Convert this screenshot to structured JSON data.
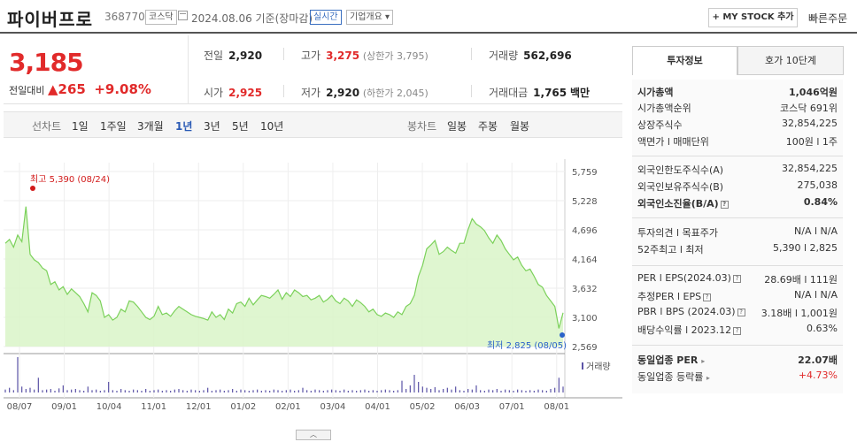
{
  "header": {
    "name": "파이버프로",
    "code": "368770",
    "market": "코스닥",
    "date": "2024.08.06 기준(장마감)",
    "realtime": "실시간",
    "company_overview": "기업개요",
    "mystock": "+ MY STOCK 추가",
    "quick_order": "빠른주문"
  },
  "price": {
    "current": "3,185",
    "change_label": "전일대비",
    "change_amount": "265",
    "change_rate": "+9.08%",
    "prev_label": "전일",
    "prev": "2,920",
    "high_label": "고가",
    "high": "3,275",
    "upper_limit": "(상한가 3,795)",
    "volume_label": "거래량",
    "volume": "562,696",
    "open_label": "시가",
    "open": "2,925",
    "low_label": "저가",
    "low": "2,920",
    "lower_limit": "(하한가 2,045)",
    "amount_label": "거래대금",
    "amount": "1,765",
    "amount_unit": "백만"
  },
  "period_bar": {
    "line_title": "선차트",
    "line_periods": [
      "1일",
      "1주일",
      "3개월",
      "1년",
      "3년",
      "5년",
      "10년"
    ],
    "active": "1년",
    "candle_title": "봉차트",
    "candle_periods": [
      "일봉",
      "주봉",
      "월봉"
    ]
  },
  "chart_data": {
    "type": "area",
    "y_ticks": [
      "5,759",
      "5,228",
      "4,696",
      "4,164",
      "3,632",
      "3,100",
      "2,569"
    ],
    "ylim": [
      2569,
      5759
    ],
    "x_ticks": [
      "08/07",
      "09/01",
      "10/04",
      "11/01",
      "12/01",
      "01/02",
      "02/01",
      "03/04",
      "04/01",
      "05/02",
      "06/03",
      "07/01",
      "08/01"
    ],
    "max_label": "최고 5,390 (08/24)",
    "min_label": "최저 2,825 (08/05)",
    "volume_label": "거래량",
    "color": "#7bd15a",
    "fill": "#d9f5c8",
    "values": [
      4450,
      4520,
      4380,
      4600,
      4480,
      5120,
      4250,
      4150,
      4100,
      4000,
      3950,
      3700,
      3750,
      3600,
      3660,
      3520,
      3620,
      3550,
      3480,
      3350,
      3200,
      3550,
      3500,
      3400,
      3100,
      3150,
      3050,
      3100,
      3250,
      3200,
      3400,
      3380,
      3300,
      3200,
      3100,
      3060,
      3120,
      3300,
      3150,
      3180,
      3120,
      3220,
      3300,
      3250,
      3200,
      3150,
      3120,
      3100,
      3080,
      3050,
      3200,
      3100,
      3150,
      3060,
      3250,
      3180,
      3350,
      3380,
      3300,
      3450,
      3330,
      3420,
      3500,
      3480,
      3450,
      3520,
      3600,
      3430,
      3550,
      3480,
      3600,
      3550,
      3480,
      3500,
      3420,
      3450,
      3500,
      3380,
      3430,
      3500,
      3400,
      3350,
      3450,
      3400,
      3300,
      3420,
      3370,
      3300,
      3200,
      3250,
      3150,
      3120,
      3180,
      3150,
      3100,
      3200,
      3150,
      3300,
      3350,
      3500,
      3850,
      4050,
      4350,
      4420,
      4500,
      4250,
      4300,
      4380,
      4320,
      4270,
      4450,
      4450,
      4700,
      4900,
      4800,
      4750,
      4680,
      4550,
      4450,
      4600,
      4500,
      4350,
      4250,
      4150,
      4200,
      4050,
      3950,
      3980,
      3850,
      3700,
      3650,
      3500,
      3400,
      3300,
      2900,
      3185
    ],
    "volumes": [
      5,
      8,
      4,
      60,
      10,
      6,
      8,
      5,
      25,
      4,
      5,
      6,
      3,
      7,
      12,
      4,
      5,
      6,
      4,
      3,
      10,
      4,
      5,
      3,
      4,
      18,
      4,
      3,
      6,
      4,
      3,
      5,
      4,
      3,
      6,
      3,
      4,
      5,
      3,
      4,
      3,
      5,
      6,
      4,
      3,
      5,
      4,
      3,
      4,
      8,
      3,
      4,
      5,
      3,
      4,
      6,
      3,
      5,
      4,
      3,
      4,
      5,
      3,
      4,
      3,
      5,
      4,
      3,
      4,
      5,
      3,
      4,
      8,
      4,
      3,
      5,
      4,
      3,
      4,
      5,
      4,
      3,
      5,
      3,
      4,
      3,
      4,
      5,
      3,
      4,
      3,
      4,
      5,
      4,
      3,
      4,
      20,
      6,
      12,
      30,
      18,
      10,
      8,
      6,
      9,
      4,
      6,
      8,
      5,
      10,
      4,
      3,
      6,
      5,
      12,
      4,
      3,
      5,
      4,
      6,
      3,
      5,
      4,
      3,
      5,
      4,
      3,
      4,
      3,
      5,
      4,
      3,
      6,
      8,
      25,
      10
    ]
  },
  "tabs": {
    "invest_info": "투자정보",
    "hoga": "호가 10단계"
  },
  "invest": {
    "market_cap_label": "시가총액",
    "market_cap": "1,046억원",
    "market_cap_rank_label": "시가총액순위",
    "market_cap_rank": "코스닥 691위",
    "shares_label": "상장주식수",
    "shares": "32,854,225",
    "par_label": "액면가 l 매매단위",
    "par": "100원 l 1주",
    "foreign_limit_label": "외국인한도주식수(A)",
    "foreign_limit": "32,854,225",
    "foreign_hold_label": "외국인보유주식수(B)",
    "foreign_hold": "275,038",
    "foreign_ratio_label": "외국인소진율(B/A)",
    "foreign_ratio": "0.84%",
    "opinion_label": "투자의견 l 목표주가",
    "opinion": "N/A l N/A",
    "w52_label": "52주최고 l 최저",
    "w52": "5,390 l 2,825",
    "per_label": "PER l EPS(2024.03)",
    "per": "28.69배 l 111원",
    "est_per_label": "추정PER l EPS",
    "est_per": "N/A l N/A",
    "pbr_label": "PBR l BPS (2024.03)",
    "pbr": "3.18배 l 1,001원",
    "div_label": "배당수익률 l 2023.12",
    "div": "0.63%",
    "sector_per_label": "동일업종 PER",
    "sector_per": "22.07배",
    "sector_change_label": "동일업종 등락률",
    "sector_change": "+4.73%"
  }
}
